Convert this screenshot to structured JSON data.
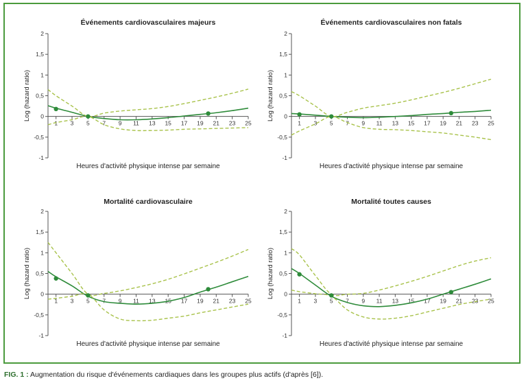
{
  "caption": {
    "label": "FIG. 1 :",
    "text": "Augmentation du risque d'événements cardiaques dans les groupes plus actifs (d'après [6])."
  },
  "colors": {
    "frame": "#4a9a3c",
    "estimate": "#2e8b3a",
    "ci": "#a8c24a",
    "axis": "#555555"
  },
  "chart_data": [
    {
      "type": "line",
      "title": "Événements cardiovasculaires majeurs",
      "xlabel": "Heures d'activité physique intense par semaine",
      "ylabel": "Log (hazard ratio)",
      "xlim": [
        0,
        25
      ],
      "ylim": [
        -1,
        2
      ],
      "xticks": [
        1,
        3,
        5,
        7,
        9,
        11,
        13,
        15,
        17,
        19,
        21,
        23,
        25
      ],
      "yticks": [
        -1,
        -0.5,
        0,
        0.5,
        1,
        1.5,
        2
      ],
      "xtick_labels": [
        "1",
        "3",
        "5",
        "7",
        "9",
        "11",
        "13",
        "15",
        "17",
        "19",
        "21",
        "23",
        "25"
      ],
      "ytick_labels": [
        "-1",
        "-0,5",
        "0",
        "0,5",
        "1",
        "1,5",
        "2"
      ],
      "series": [
        {
          "role": "estimate",
          "x": [
            0,
            1,
            3,
            5,
            7,
            9,
            11,
            13,
            15,
            17,
            19,
            21,
            23,
            25
          ],
          "y": [
            0.26,
            0.2,
            0.1,
            0,
            -0.05,
            -0.08,
            -0.08,
            -0.06,
            -0.03,
            0.01,
            0.05,
            0.09,
            0.14,
            0.2
          ]
        },
        {
          "role": "ci_upper",
          "x": [
            0,
            1,
            3,
            5,
            7,
            9,
            11,
            13,
            15,
            17,
            19,
            21,
            23,
            25
          ],
          "y": [
            0.65,
            0.5,
            0.25,
            0,
            0.08,
            0.13,
            0.16,
            0.19,
            0.24,
            0.31,
            0.39,
            0.47,
            0.56,
            0.66
          ]
        },
        {
          "role": "ci_lower",
          "x": [
            0,
            1,
            3,
            5,
            7,
            9,
            11,
            13,
            15,
            17,
            19,
            21,
            23,
            25
          ],
          "y": [
            -0.2,
            -0.15,
            -0.08,
            0,
            -0.2,
            -0.3,
            -0.34,
            -0.34,
            -0.33,
            -0.31,
            -0.3,
            -0.29,
            -0.28,
            -0.27
          ]
        }
      ],
      "points": [
        {
          "x": 1,
          "y": 0.18
        },
        {
          "x": 5,
          "y": 0
        },
        {
          "x": 20,
          "y": 0.07
        }
      ]
    },
    {
      "type": "line",
      "title": "Événements cardiovasculaires non fatals",
      "xlabel": "Heures d'activité physique intense par semaine",
      "ylabel": "Log (hazard ratio)",
      "xlim": [
        0,
        25
      ],
      "ylim": [
        -1,
        2
      ],
      "xticks": [
        1,
        3,
        5,
        7,
        9,
        11,
        13,
        15,
        17,
        19,
        21,
        23,
        25
      ],
      "yticks": [
        -1,
        -0.5,
        0,
        0.5,
        1,
        1.5,
        2
      ],
      "xtick_labels": [
        "1",
        "3",
        "5",
        "7",
        "9",
        "11",
        "13",
        "15",
        "17",
        "19",
        "21",
        "23",
        "25"
      ],
      "ytick_labels": [
        "-1",
        "-0,5",
        "0",
        "0,5",
        "1",
        "1,5",
        "2"
      ],
      "series": [
        {
          "role": "estimate",
          "x": [
            0,
            1,
            3,
            5,
            7,
            9,
            11,
            13,
            15,
            17,
            19,
            21,
            23,
            25
          ],
          "y": [
            0.07,
            0.06,
            0.03,
            0,
            -0.02,
            -0.03,
            -0.02,
            0,
            0.02,
            0.05,
            0.07,
            0.1,
            0.12,
            0.15
          ]
        },
        {
          "role": "ci_upper",
          "x": [
            0,
            1,
            3,
            5,
            7,
            9,
            11,
            13,
            15,
            17,
            19,
            21,
            23,
            25
          ],
          "y": [
            0.6,
            0.5,
            0.25,
            0,
            0.1,
            0.2,
            0.26,
            0.32,
            0.4,
            0.49,
            0.58,
            0.68,
            0.79,
            0.9
          ]
        },
        {
          "role": "ci_lower",
          "x": [
            0,
            1,
            3,
            5,
            7,
            9,
            11,
            13,
            15,
            17,
            19,
            21,
            23,
            25
          ],
          "y": [
            -0.45,
            -0.35,
            -0.18,
            0,
            -0.15,
            -0.27,
            -0.31,
            -0.32,
            -0.34,
            -0.37,
            -0.4,
            -0.45,
            -0.5,
            -0.56
          ]
        }
      ],
      "points": [
        {
          "x": 1,
          "y": 0.05
        },
        {
          "x": 5,
          "y": 0
        },
        {
          "x": 20,
          "y": 0.08
        }
      ]
    },
    {
      "type": "line",
      "title": "Mortalité cardiovasculaire",
      "xlabel": "Heures d'activité physique intense par semaine",
      "ylabel": "Log (hazard ratio)",
      "xlim": [
        0,
        25
      ],
      "ylim": [
        -1,
        2
      ],
      "xticks": [
        1,
        3,
        5,
        7,
        9,
        11,
        13,
        15,
        17,
        19,
        21,
        23,
        25
      ],
      "yticks": [
        -1,
        -0.5,
        0,
        0.5,
        1,
        1.5,
        2
      ],
      "xtick_labels": [
        "1",
        "3",
        "5",
        "7",
        "9",
        "11",
        "13",
        "15",
        "17",
        "19",
        "21",
        "23",
        "25"
      ],
      "ytick_labels": [
        "-1",
        "-0,5",
        "0",
        "0,5",
        "1",
        "1,5",
        "2"
      ],
      "series": [
        {
          "role": "estimate",
          "x": [
            0,
            1,
            3,
            5,
            7,
            9,
            11,
            13,
            15,
            17,
            19,
            21,
            23,
            25
          ],
          "y": [
            0.55,
            0.42,
            0.2,
            -0.05,
            -0.18,
            -0.22,
            -0.24,
            -0.22,
            -0.17,
            -0.08,
            0.05,
            0.17,
            0.3,
            0.43
          ]
        },
        {
          "role": "ci_upper",
          "x": [
            0,
            1,
            3,
            5,
            7,
            9,
            11,
            13,
            15,
            17,
            19,
            21,
            23,
            25
          ],
          "y": [
            1.25,
            1.0,
            0.5,
            0,
            0.02,
            0.08,
            0.16,
            0.25,
            0.36,
            0.49,
            0.63,
            0.77,
            0.92,
            1.08
          ]
        },
        {
          "role": "ci_lower",
          "x": [
            0,
            1,
            3,
            5,
            7,
            9,
            11,
            13,
            15,
            17,
            19,
            21,
            23,
            25
          ],
          "y": [
            -0.12,
            -0.1,
            -0.05,
            0,
            -0.38,
            -0.6,
            -0.64,
            -0.63,
            -0.58,
            -0.53,
            -0.45,
            -0.38,
            -0.31,
            -0.24
          ]
        }
      ],
      "points": [
        {
          "x": 1,
          "y": 0.38
        },
        {
          "x": 5,
          "y": -0.03
        },
        {
          "x": 20,
          "y": 0.12
        }
      ]
    },
    {
      "type": "line",
      "title": "Mortalité toutes causes",
      "xlabel": "Heures d'activité physique intense par semaine",
      "ylabel": "Log (hazard ratio)",
      "xlim": [
        0,
        25
      ],
      "ylim": [
        -1,
        2
      ],
      "xticks": [
        1,
        3,
        5,
        7,
        9,
        11,
        13,
        15,
        17,
        19,
        21,
        23,
        25
      ],
      "yticks": [
        -1,
        -0.5,
        0,
        0.5,
        1,
        1.5,
        2
      ],
      "xtick_labels": [
        "1",
        "3",
        "5",
        "7",
        "9",
        "11",
        "13",
        "15",
        "17",
        "19",
        "21",
        "23",
        "25"
      ],
      "ytick_labels": [
        "-1",
        "-0,5",
        "0",
        "0,5",
        "1",
        "1,5",
        "2"
      ],
      "series": [
        {
          "role": "estimate",
          "x": [
            0,
            1,
            3,
            5,
            7,
            9,
            11,
            13,
            15,
            17,
            19,
            21,
            23,
            25
          ],
          "y": [
            0.62,
            0.5,
            0.22,
            -0.05,
            -0.2,
            -0.28,
            -0.3,
            -0.27,
            -0.21,
            -0.12,
            0,
            0.12,
            0.24,
            0.37
          ]
        },
        {
          "role": "ci_upper",
          "x": [
            0,
            1,
            3,
            5,
            7,
            9,
            11,
            13,
            15,
            17,
            19,
            21,
            23,
            25
          ],
          "y": [
            1.1,
            0.95,
            0.45,
            0,
            0.0,
            0.02,
            0.1,
            0.2,
            0.31,
            0.43,
            0.56,
            0.69,
            0.8,
            0.88
          ]
        },
        {
          "role": "ci_lower",
          "x": [
            0,
            1,
            3,
            5,
            7,
            9,
            11,
            13,
            15,
            17,
            19,
            21,
            23,
            25
          ],
          "y": [
            0.1,
            0.06,
            0.01,
            -0.05,
            -0.38,
            -0.55,
            -0.6,
            -0.58,
            -0.52,
            -0.43,
            -0.34,
            -0.25,
            -0.18,
            -0.12
          ]
        }
      ],
      "points": [
        {
          "x": 1,
          "y": 0.48
        },
        {
          "x": 5,
          "y": -0.03
        },
        {
          "x": 20,
          "y": 0.05
        }
      ]
    }
  ]
}
